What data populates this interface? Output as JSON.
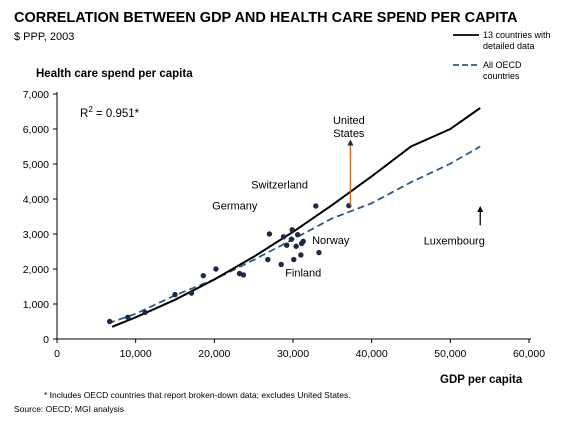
{
  "chart_data": {
    "type": "scatter",
    "title": "CORRELATION BETWEEN GDP AND HEALTH CARE SPEND PER CAPITA",
    "subtitle": "$ PPP, 2003",
    "ylabel": "Health care spend per capita",
    "xlabel": "GDP per capita",
    "xlim": [
      0,
      60000
    ],
    "ylim": [
      0,
      7000
    ],
    "x_ticks": [
      "0",
      "10,000",
      "20,000",
      "30,000",
      "40,000",
      "50,000",
      "60,000"
    ],
    "y_ticks": [
      "0",
      "1,000",
      "2,000",
      "3,000",
      "4,000",
      "5,000",
      "6,000",
      "7,000"
    ],
    "r2_label": "R",
    "r2_sup": "2",
    "r2_value": " = 0.951*",
    "legend": [
      {
        "label_lines": [
          "13 countries with",
          "detailed data"
        ],
        "style": "solid",
        "color": "#000000"
      },
      {
        "label_lines": [
          "All OECD",
          "countries"
        ],
        "style": "dashed",
        "color": "#2e5a87"
      }
    ],
    "points": [
      {
        "x": 6700,
        "y": 500
      },
      {
        "x": 9000,
        "y": 620
      },
      {
        "x": 11200,
        "y": 760
      },
      {
        "x": 15000,
        "y": 1270
      },
      {
        "x": 17100,
        "y": 1310
      },
      {
        "x": 18600,
        "y": 1810
      },
      {
        "x": 20200,
        "y": 2000
      },
      {
        "x": 23200,
        "y": 1870
      },
      {
        "x": 23700,
        "y": 1830
      },
      {
        "x": 26800,
        "y": 2270
      },
      {
        "x": 27000,
        "y": 3000,
        "label": "Germany"
      },
      {
        "x": 28500,
        "y": 2130,
        "label": "Finland"
      },
      {
        "x": 28800,
        "y": 2920
      },
      {
        "x": 29200,
        "y": 2680
      },
      {
        "x": 29800,
        "y": 2850
      },
      {
        "x": 29900,
        "y": 3120
      },
      {
        "x": 30100,
        "y": 2270
      },
      {
        "x": 30400,
        "y": 2650
      },
      {
        "x": 30600,
        "y": 2980
      },
      {
        "x": 31000,
        "y": 2400
      },
      {
        "x": 31100,
        "y": 2730
      },
      {
        "x": 31300,
        "y": 2790
      },
      {
        "x": 32900,
        "y": 3800,
        "label": "Switzerland"
      },
      {
        "x": 33300,
        "y": 2470
      },
      {
        "x": 37100,
        "y": 3810,
        "label": "Norway"
      }
    ],
    "solid_fit": [
      [
        7000,
        350
      ],
      [
        10000,
        620
      ],
      [
        15000,
        1120
      ],
      [
        20000,
        1700
      ],
      [
        25000,
        2350
      ],
      [
        30000,
        3060
      ],
      [
        35000,
        3830
      ],
      [
        40000,
        4650
      ],
      [
        45000,
        5500
      ],
      [
        50000,
        6000
      ],
      [
        53800,
        6600
      ]
    ],
    "dashed_fit": [
      [
        6500,
        450
      ],
      [
        10000,
        720
      ],
      [
        15000,
        1250
      ],
      [
        20000,
        1700
      ],
      [
        25000,
        2260
      ],
      [
        30000,
        2850
      ],
      [
        35000,
        3450
      ],
      [
        40000,
        3880
      ],
      [
        45000,
        4480
      ],
      [
        50000,
        5010
      ],
      [
        53800,
        5500
      ]
    ],
    "annotations": [
      {
        "text_lines": [
          "United",
          "States"
        ],
        "x": 37100,
        "y": 6150,
        "arrow_from": [
          37300,
          3810
        ],
        "arrow_to": [
          37300,
          5700
        ],
        "arrow_color": "#d2691e"
      },
      {
        "text_lines": [
          "Luxembourg"
        ],
        "x": 50500,
        "y": 2700,
        "arrow_from": [
          53800,
          3250
        ],
        "arrow_to": [
          53800,
          3800
        ],
        "arrow_color": "#000000"
      },
      {
        "text_lines": [
          "Switzerland"
        ],
        "x": 28300,
        "y": 4300
      },
      {
        "text_lines": [
          "Germany"
        ],
        "x": 22600,
        "y": 3700
      },
      {
        "text_lines": [
          "Norway"
        ],
        "x": 34800,
        "y": 2720
      },
      {
        "text_lines": [
          "Finland"
        ],
        "x": 31300,
        "y": 1780
      }
    ]
  },
  "footnote": "* Includes OECD countries that report broken-down data; excludes United States.",
  "source": "Source: OECD; MGI analysis"
}
